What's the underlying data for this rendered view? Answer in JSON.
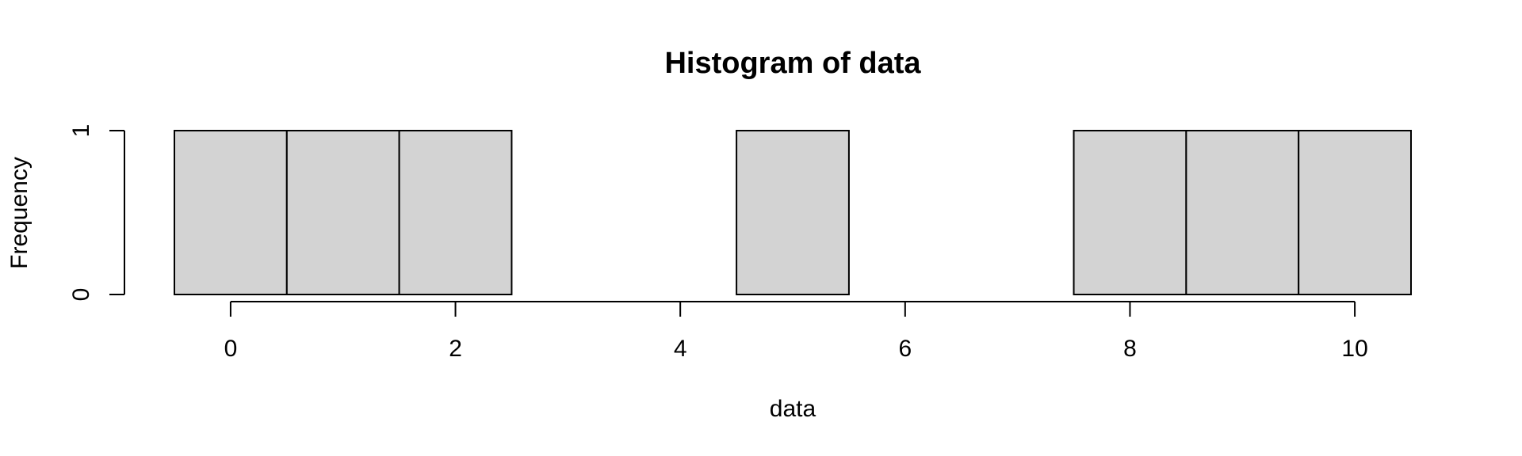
{
  "chart_data": {
    "type": "bar",
    "title": "Histogram of data",
    "xlabel": "data",
    "ylabel": "Frequency",
    "bins": [
      {
        "x0": -0.5,
        "x1": 0.5,
        "count": 1
      },
      {
        "x0": 0.5,
        "x1": 1.5,
        "count": 1
      },
      {
        "x0": 1.5,
        "x1": 2.5,
        "count": 1
      },
      {
        "x0": 2.5,
        "x1": 3.5,
        "count": 0
      },
      {
        "x0": 3.5,
        "x1": 4.5,
        "count": 0
      },
      {
        "x0": 4.5,
        "x1": 5.5,
        "count": 1
      },
      {
        "x0": 5.5,
        "x1": 6.5,
        "count": 0
      },
      {
        "x0": 6.5,
        "x1": 7.5,
        "count": 0
      },
      {
        "x0": 7.5,
        "x1": 8.5,
        "count": 1
      },
      {
        "x0": 8.5,
        "x1": 9.5,
        "count": 1
      },
      {
        "x0": 9.5,
        "x1": 10.5,
        "count": 1
      }
    ],
    "xlim": [
      -0.5,
      10.5
    ],
    "ylim": [
      0,
      1
    ],
    "xticks": [
      0,
      2,
      4,
      6,
      8,
      10
    ],
    "yticks": [
      0,
      1
    ],
    "bar_color": "#d3d3d3",
    "grid": false
  }
}
